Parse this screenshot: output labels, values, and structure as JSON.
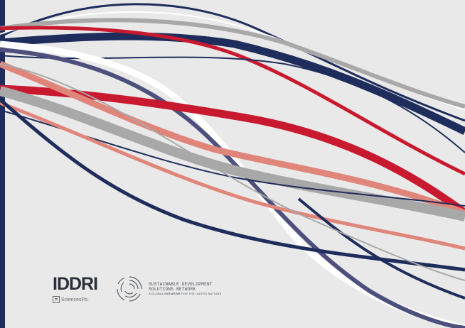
{
  "background_color": "#e9e9e9",
  "accent_colors": {
    "navy": "#1f2d5c",
    "slate": "#4d4f7c",
    "red": "#c8192f",
    "salmon": "#e0857a",
    "gray": "#a8a8a8",
    "white": "#ffffff"
  },
  "logos": {
    "iddri": {
      "wordmark": "IDDRI",
      "subline": "SciencesPo."
    },
    "sdsn": {
      "line1": "SUSTAINABLE DEVELOPMENT",
      "line2": "SOLUTIONS NETWORK",
      "tagline_prefix": "A GLOBAL",
      "tagline_bold": "INITIATIVE",
      "tagline_suffix": "FOR THE UNITED NATIONS"
    }
  }
}
